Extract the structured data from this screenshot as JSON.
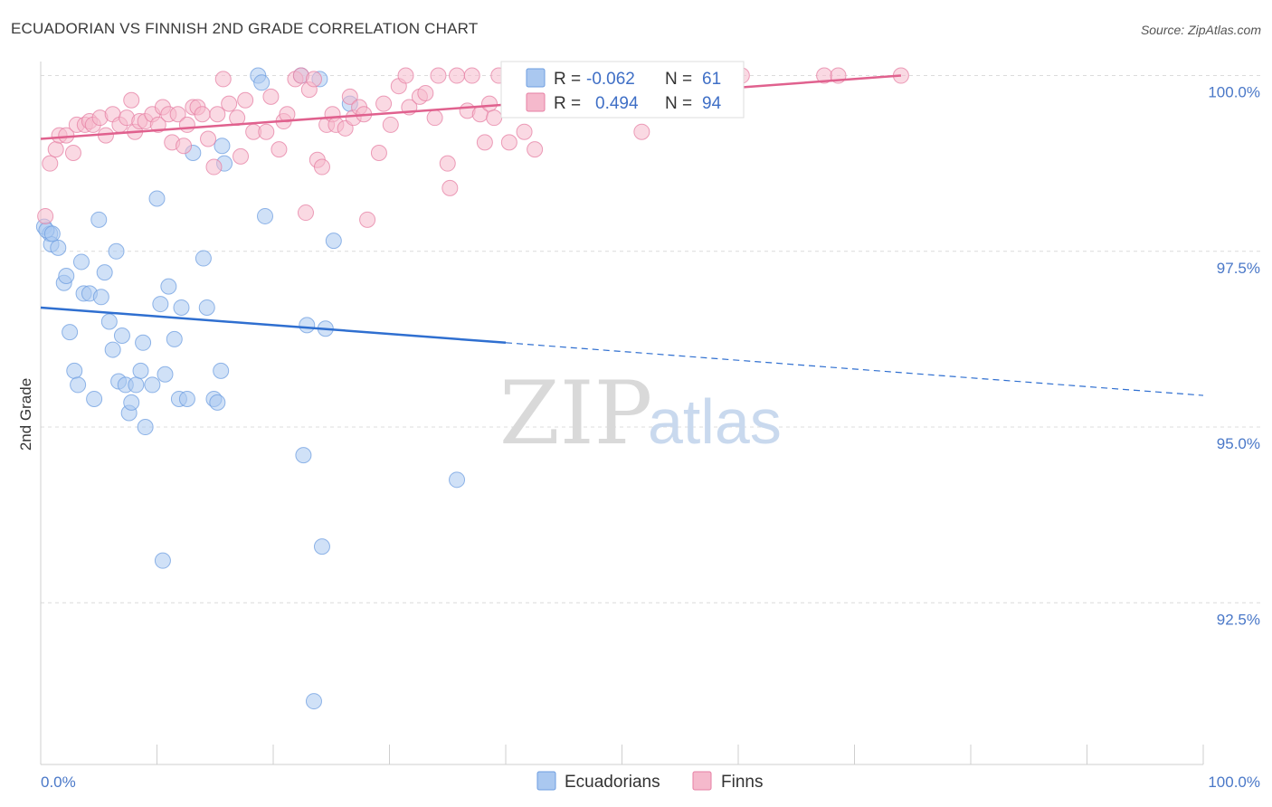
{
  "header": {
    "title": "ECUADORIAN VS FINNISH 2ND GRADE CORRELATION CHART",
    "source": "Source: ZipAtlas.com"
  },
  "chart_data": {
    "type": "scatter",
    "title": "ECUADORIAN VS FINNISH 2ND GRADE CORRELATION CHART",
    "xlabel": "",
    "ylabel": "2nd Grade",
    "xlim": [
      0,
      100
    ],
    "ylim": [
      90.2,
      100.2
    ],
    "x_tick_labels": [
      "0.0%",
      "100.0%"
    ],
    "y_ticks": [
      100.0,
      97.5,
      95.0,
      92.5
    ],
    "y_tick_labels": [
      "100.0%",
      "97.5%",
      "95.0%",
      "92.5%"
    ],
    "grid": true,
    "watermark": {
      "left": "ZIP",
      "right": "atlas"
    },
    "legend": {
      "position": "top-center",
      "entries": [
        {
          "series": "Ecuadorians",
          "r_label": "R =",
          "r_value": "-0.062",
          "n_label": "N =",
          "n_value": "61"
        },
        {
          "series": "Finns",
          "r_label": "R =",
          "r_value": "0.494",
          "n_label": "N =",
          "n_value": "94"
        }
      ]
    },
    "series": [
      {
        "name": "Ecuadorians",
        "color": "#6d9ee0",
        "fill": "#aac8f0",
        "trend": {
          "x0": 0,
          "y0": 96.7,
          "x1": 100,
          "y1": 95.45,
          "solid_until_x": 40
        },
        "points": [
          [
            0.3,
            97.85
          ],
          [
            0.8,
            97.75
          ],
          [
            0.9,
            97.6
          ],
          [
            1.5,
            97.55
          ],
          [
            2.0,
            97.05
          ],
          [
            2.2,
            97.15
          ],
          [
            2.5,
            96.35
          ],
          [
            2.9,
            95.8
          ],
          [
            3.2,
            95.6
          ],
          [
            3.5,
            97.35
          ],
          [
            3.7,
            96.9
          ],
          [
            4.2,
            96.9
          ],
          [
            4.6,
            95.4
          ],
          [
            5.0,
            97.95
          ],
          [
            5.2,
            96.85
          ],
          [
            5.5,
            97.2
          ],
          [
            5.9,
            96.5
          ],
          [
            6.2,
            96.1
          ],
          [
            6.5,
            97.5
          ],
          [
            6.7,
            95.65
          ],
          [
            7.0,
            96.3
          ],
          [
            7.3,
            95.6
          ],
          [
            7.6,
            95.2
          ],
          [
            7.8,
            95.35
          ],
          [
            8.2,
            95.6
          ],
          [
            8.6,
            95.8
          ],
          [
            8.8,
            96.2
          ],
          [
            9.0,
            95.0
          ],
          [
            9.6,
            95.6
          ],
          [
            10.0,
            98.25
          ],
          [
            10.3,
            96.75
          ],
          [
            10.5,
            93.1
          ],
          [
            10.7,
            95.75
          ],
          [
            11.0,
            97.0
          ],
          [
            11.5,
            96.25
          ],
          [
            11.9,
            95.4
          ],
          [
            12.1,
            96.7
          ],
          [
            12.6,
            95.4
          ],
          [
            13.1,
            98.9
          ],
          [
            14.0,
            97.4
          ],
          [
            14.3,
            96.7
          ],
          [
            14.9,
            95.4
          ],
          [
            15.2,
            95.35
          ],
          [
            15.5,
            95.8
          ],
          [
            15.6,
            99.0
          ],
          [
            15.8,
            98.75
          ],
          [
            18.7,
            100.0
          ],
          [
            19.0,
            99.9
          ],
          [
            19.3,
            98.0
          ],
          [
            22.4,
            100.0
          ],
          [
            22.6,
            94.6
          ],
          [
            22.9,
            96.45
          ],
          [
            23.5,
            91.1
          ],
          [
            24.0,
            99.95
          ],
          [
            24.2,
            93.3
          ],
          [
            24.5,
            96.4
          ],
          [
            25.2,
            97.65
          ],
          [
            26.6,
            99.6
          ],
          [
            35.8,
            94.25
          ],
          [
            0.5,
            97.8
          ],
          [
            1.0,
            97.75
          ]
        ]
      },
      {
        "name": "Finns",
        "color": "#e67fa3",
        "fill": "#f5b9cc",
        "trend": {
          "x0": 0,
          "y0": 99.1,
          "x1": 74,
          "y1": 100.0
        },
        "points": [
          [
            0.4,
            98.0
          ],
          [
            0.8,
            98.75
          ],
          [
            1.3,
            98.95
          ],
          [
            1.6,
            99.15
          ],
          [
            2.2,
            99.15
          ],
          [
            2.8,
            98.9
          ],
          [
            3.1,
            99.3
          ],
          [
            3.8,
            99.3
          ],
          [
            4.2,
            99.35
          ],
          [
            4.5,
            99.3
          ],
          [
            5.1,
            99.4
          ],
          [
            5.6,
            99.15
          ],
          [
            6.2,
            99.45
          ],
          [
            6.8,
            99.3
          ],
          [
            7.4,
            99.4
          ],
          [
            7.8,
            99.65
          ],
          [
            8.1,
            99.2
          ],
          [
            8.5,
            99.35
          ],
          [
            9.0,
            99.35
          ],
          [
            9.6,
            99.45
          ],
          [
            10.1,
            99.3
          ],
          [
            10.5,
            99.55
          ],
          [
            11.0,
            99.45
          ],
          [
            11.3,
            99.05
          ],
          [
            11.8,
            99.45
          ],
          [
            12.3,
            99.0
          ],
          [
            12.6,
            99.3
          ],
          [
            13.1,
            99.55
          ],
          [
            13.5,
            99.55
          ],
          [
            13.9,
            99.45
          ],
          [
            14.4,
            99.1
          ],
          [
            14.9,
            98.7
          ],
          [
            15.2,
            99.45
          ],
          [
            15.7,
            99.95
          ],
          [
            16.2,
            99.6
          ],
          [
            16.9,
            99.4
          ],
          [
            17.2,
            98.85
          ],
          [
            17.6,
            99.65
          ],
          [
            18.3,
            99.2
          ],
          [
            19.4,
            99.2
          ],
          [
            19.8,
            99.7
          ],
          [
            20.5,
            98.95
          ],
          [
            20.9,
            99.35
          ],
          [
            21.2,
            99.45
          ],
          [
            21.9,
            99.95
          ],
          [
            22.4,
            100.0
          ],
          [
            22.8,
            98.05
          ],
          [
            23.1,
            99.8
          ],
          [
            23.5,
            99.95
          ],
          [
            23.8,
            98.8
          ],
          [
            24.2,
            98.7
          ],
          [
            24.6,
            99.3
          ],
          [
            25.1,
            99.45
          ],
          [
            25.4,
            99.3
          ],
          [
            26.2,
            99.25
          ],
          [
            26.6,
            99.7
          ],
          [
            26.9,
            99.4
          ],
          [
            27.4,
            99.55
          ],
          [
            27.8,
            99.45
          ],
          [
            28.1,
            97.95
          ],
          [
            29.1,
            98.9
          ],
          [
            29.5,
            99.6
          ],
          [
            30.1,
            99.3
          ],
          [
            30.8,
            99.85
          ],
          [
            31.4,
            100.0
          ],
          [
            31.7,
            99.55
          ],
          [
            32.6,
            99.7
          ],
          [
            33.1,
            99.75
          ],
          [
            33.9,
            99.4
          ],
          [
            34.2,
            100.0
          ],
          [
            35.0,
            98.75
          ],
          [
            35.2,
            98.4
          ],
          [
            35.8,
            100.0
          ],
          [
            36.7,
            99.5
          ],
          [
            37.1,
            100.0
          ],
          [
            37.8,
            99.45
          ],
          [
            38.2,
            99.05
          ],
          [
            38.6,
            99.6
          ],
          [
            39.0,
            99.4
          ],
          [
            39.4,
            100.0
          ],
          [
            40.3,
            99.05
          ],
          [
            41.6,
            99.2
          ],
          [
            42.0,
            100.0
          ],
          [
            42.5,
            98.95
          ],
          [
            45.2,
            100.0
          ],
          [
            47.0,
            100.0
          ],
          [
            49.1,
            100.0
          ],
          [
            51.7,
            99.2
          ],
          [
            54.4,
            100.0
          ],
          [
            56.7,
            100.0
          ],
          [
            60.3,
            100.0
          ],
          [
            67.4,
            100.0
          ],
          [
            68.6,
            100.0
          ],
          [
            74.0,
            100.0
          ]
        ]
      }
    ]
  }
}
